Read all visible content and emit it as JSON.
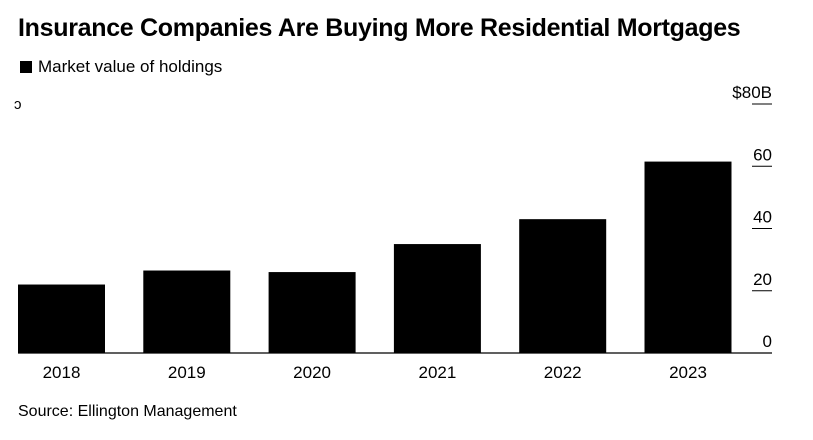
{
  "title": "Insurance Companies Are Buying More Residential Mortgages",
  "legend_label": "Market value of holdings",
  "edge_glyph": "ↄ",
  "source": "Source: Ellington Management",
  "colors": {
    "bar": "#000000",
    "background": "#ffffff",
    "text": "#000000"
  },
  "chart_data": {
    "type": "bar",
    "categories": [
      "2018",
      "2019",
      "2020",
      "2021",
      "2022",
      "2023"
    ],
    "series": [
      {
        "name": "Market value of holdings",
        "values": [
          22,
          26.5,
          26,
          35,
          43,
          61.5
        ]
      }
    ],
    "ylim": [
      0,
      80
    ],
    "yticks": [
      0,
      20,
      40,
      60,
      80
    ],
    "ytick_labels": [
      "0",
      "20",
      "40",
      "60",
      "$80B"
    ],
    "title": "Insurance Companies Are Buying More Residential Mortgages",
    "xlabel": "",
    "ylabel": "",
    "legend": "top-left",
    "source": "Source: Ellington Management"
  }
}
